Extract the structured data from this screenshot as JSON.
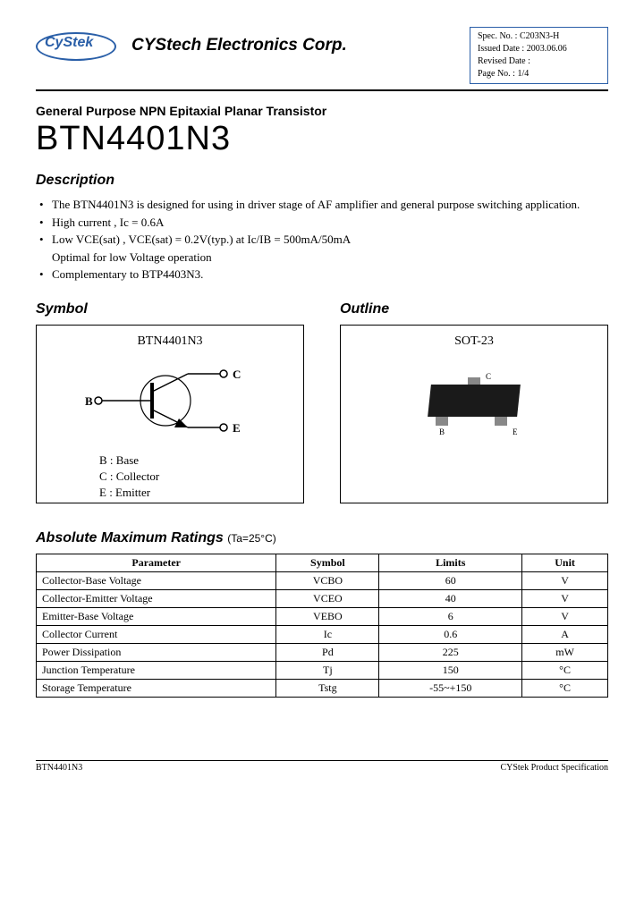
{
  "header": {
    "logo_text": "CyStek",
    "company": "CYStech Electronics Corp.",
    "spec": {
      "spec_no_label": "Spec. No. :",
      "spec_no": "C203N3-H",
      "issued_label": "Issued Date :",
      "issued": "2003.06.06",
      "revised_label": "Revised Date :",
      "revised": "",
      "page_label": "Page No. :",
      "page": "1/4"
    }
  },
  "subtitle": "General Purpose NPN Epitaxial Planar Transistor",
  "part_number": "BTN4401N3",
  "description": {
    "title": "Description",
    "items": [
      "The BTN4401N3 is designed for using in driver stage of AF amplifier and general purpose switching application.",
      "High current , Ic = 0.6A",
      "Low VCE(sat) , VCE(sat) = 0.2V(typ.) at Ic/IB = 500mA/50mA",
      "Complementary to BTP4403N3."
    ],
    "sub_line": "Optimal for low Voltage operation"
  },
  "symbol": {
    "title": "Symbol",
    "label": "BTN4401N3",
    "pins": {
      "b": "B",
      "c": "C",
      "e": "E"
    },
    "legend": [
      "B : Base",
      "C : Collector",
      "E : Emitter"
    ]
  },
  "outline": {
    "title": "Outline",
    "label": "SOT-23",
    "pin_labels": {
      "c": "C",
      "b": "B",
      "e": "E"
    }
  },
  "ratings": {
    "title": "Absolute Maximum Ratings",
    "condition": "(Ta=25°C)",
    "headers": [
      "Parameter",
      "Symbol",
      "Limits",
      "Unit"
    ],
    "rows": [
      [
        "Collector-Base Voltage",
        "VCBO",
        "60",
        "V"
      ],
      [
        "Collector-Emitter Voltage",
        "VCEO",
        "40",
        "V"
      ],
      [
        "Emitter-Base Voltage",
        "VEBO",
        "6",
        "V"
      ],
      [
        "Collector Current",
        "Ic",
        "0.6",
        "A"
      ],
      [
        "Power Dissipation",
        "Pd",
        "225",
        "mW"
      ],
      [
        "Junction Temperature",
        "Tj",
        "150",
        "°C"
      ],
      [
        "Storage Temperature",
        "Tstg",
        "-55~+150",
        "°C"
      ]
    ]
  },
  "footer": {
    "left": "BTN4401N3",
    "right": "CYStek Product Specification"
  },
  "colors": {
    "brand": "#2a5fa8",
    "chip": "#1a1a1a",
    "lead": "#888888",
    "border": "#000000",
    "bg": "#ffffff"
  }
}
